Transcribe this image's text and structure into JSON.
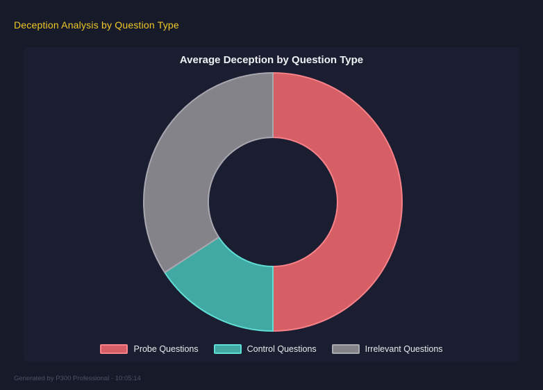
{
  "page": {
    "title": "Deception Analysis by Question Type",
    "footer": "Generated by P300 Professional - 10:05:14"
  },
  "colors": {
    "page_bg": "#171a29",
    "panel_bg": "#1b1e31",
    "title_yellow": "#f0c929",
    "chart_title_text": "#eef0f4",
    "legend_text": "#e8eaee",
    "footer_text": "#4b5066"
  },
  "chart_data": {
    "type": "pie",
    "variant": "donut",
    "title": "Average Deception by Question Type",
    "categories": [
      "Probe Questions",
      "Control Questions",
      "Irrelevant Questions"
    ],
    "values_percent": [
      50.0,
      15.8,
      34.2
    ],
    "angles_deg": [
      [
        0,
        180
      ],
      [
        180,
        237
      ],
      [
        237,
        360
      ]
    ],
    "start_angle_deg": 0,
    "direction": "clockwise",
    "inner_radius_ratio": 0.5,
    "legend_position": "bottom",
    "segments": [
      {
        "label": "Probe Questions",
        "percent": 50.0,
        "color": "#d65f66",
        "border": "#f8828a"
      },
      {
        "label": "Control Questions",
        "percent": 15.8,
        "color": "#41a8a2",
        "border": "#5fded5"
      },
      {
        "label": "Irrelevant Questions",
        "percent": 34.2,
        "color": "#84838a",
        "border": "#a9a8b0"
      }
    ]
  }
}
